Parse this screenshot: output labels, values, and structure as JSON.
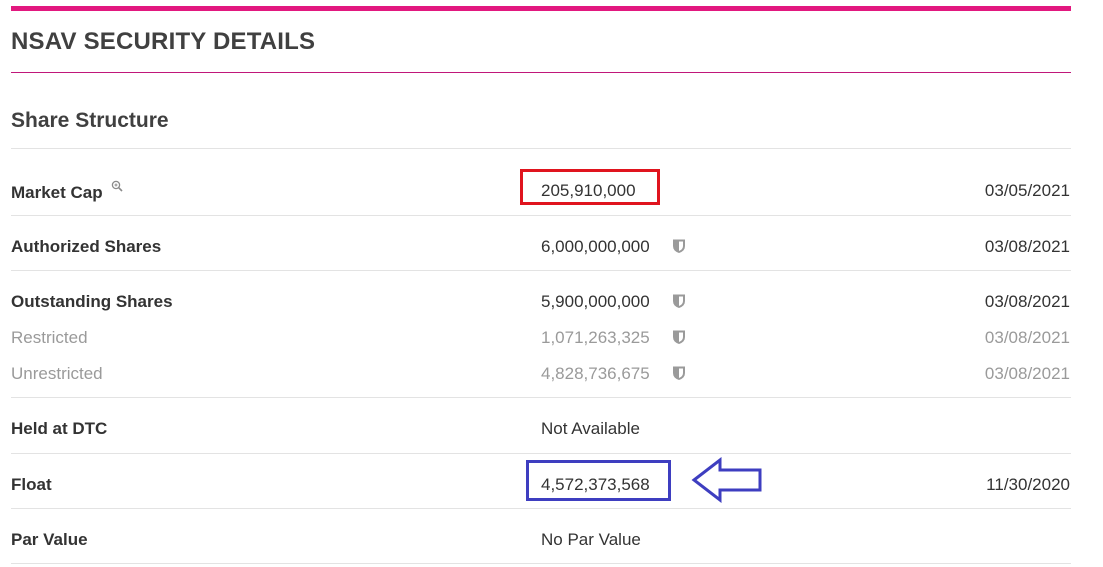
{
  "header": {
    "title": "NSAV SECURITY DETAILS",
    "accent_color": "#e2187f"
  },
  "section": {
    "title": "Share Structure"
  },
  "rows": {
    "market_cap": {
      "label": "Market Cap",
      "value": "205,910,000",
      "date": "03/05/2021",
      "icon": "magnifier-icon"
    },
    "authorized": {
      "label": "Authorized Shares",
      "value": "6,000,000,000",
      "date": "03/08/2021",
      "icon": "shield-icon"
    },
    "outstanding": {
      "label": "Outstanding Shares",
      "value": "5,900,000,000",
      "date": "03/08/2021",
      "icon": "shield-icon"
    },
    "restricted": {
      "label": "Restricted",
      "value": "1,071,263,325",
      "date": "03/08/2021",
      "icon": "shield-icon"
    },
    "unrestricted": {
      "label": "Unrestricted",
      "value": "4,828,736,675",
      "date": "03/08/2021",
      "icon": "shield-icon"
    },
    "held_dtc": {
      "label": "Held at DTC",
      "value": "Not Available"
    },
    "float": {
      "label": "Float",
      "value": "4,572,373,568",
      "date": "11/30/2020"
    },
    "par_value": {
      "label": "Par Value",
      "value": "No Par Value"
    }
  },
  "annotations": {
    "highlight_red": "#e0141e",
    "highlight_blue": "#3e3ec0"
  }
}
